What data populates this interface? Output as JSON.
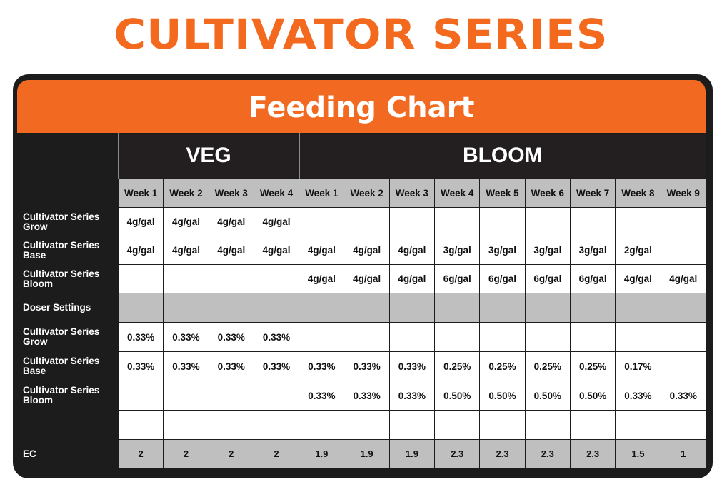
{
  "brand_title": "CULTIVATOR SERIES",
  "chart_title": "Feeding Chart",
  "colors": {
    "accent": "#f26a21",
    "dark": "#1d1c1c",
    "gray": "#bfbfbf"
  },
  "phases": [
    {
      "label": "VEG",
      "weeks": 4
    },
    {
      "label": "BLOOM",
      "weeks": 9
    }
  ],
  "weeks": [
    "Week 1",
    "Week 2",
    "Week 3",
    "Week 4",
    "Week 1",
    "Week 2",
    "Week 3",
    "Week 4",
    "Week 5",
    "Week 6",
    "Week 7",
    "Week 8",
    "Week 9"
  ],
  "rows": [
    {
      "label": "Cultivator Series Grow",
      "type": "cell",
      "values": [
        "4g/gal",
        "4g/gal",
        "4g/gal",
        "4g/gal",
        "",
        "",
        "",
        "",
        "",
        "",
        "",
        "",
        ""
      ]
    },
    {
      "label": "Cultivator Series Base",
      "type": "cell",
      "values": [
        "4g/gal",
        "4g/gal",
        "4g/gal",
        "4g/gal",
        "4g/gal",
        "4g/gal",
        "4g/gal",
        "3g/gal",
        "3g/gal",
        "3g/gal",
        "3g/gal",
        "2g/gal",
        ""
      ]
    },
    {
      "label": "Cultivator Series Bloom",
      "type": "cell",
      "values": [
        "",
        "",
        "",
        "",
        "4g/gal",
        "4g/gal",
        "4g/gal",
        "6g/gal",
        "6g/gal",
        "6g/gal",
        "6g/gal",
        "4g/gal",
        "4g/gal"
      ]
    },
    {
      "label": "Doser Settings",
      "type": "grey",
      "values": [
        "",
        "",
        "",
        "",
        "",
        "",
        "",
        "",
        "",
        "",
        "",
        "",
        ""
      ]
    },
    {
      "label": "Cultivator Series Grow",
      "type": "cell",
      "values": [
        "0.33%",
        "0.33%",
        "0.33%",
        "0.33%",
        "",
        "",
        "",
        "",
        "",
        "",
        "",
        "",
        ""
      ]
    },
    {
      "label": "Cultivator Series Base",
      "type": "cell",
      "values": [
        "0.33%",
        "0.33%",
        "0.33%",
        "0.33%",
        "0.33%",
        "0.33%",
        "0.33%",
        "0.25%",
        "0.25%",
        "0.25%",
        "0.25%",
        "0.17%",
        ""
      ]
    },
    {
      "label": "Cultivator Series Bloom",
      "type": "cell",
      "values": [
        "",
        "",
        "",
        "",
        "0.33%",
        "0.33%",
        "0.33%",
        "0.50%",
        "0.50%",
        "0.50%",
        "0.50%",
        "0.33%",
        "0.33%"
      ]
    },
    {
      "label": "",
      "type": "cell",
      "values": [
        "",
        "",
        "",
        "",
        "",
        "",
        "",
        "",
        "",
        "",
        "",
        "",
        ""
      ]
    },
    {
      "label": "EC",
      "type": "ec",
      "values": [
        "2",
        "2",
        "2",
        "2",
        "1.9",
        "1.9",
        "1.9",
        "2.3",
        "2.3",
        "2.3",
        "2.3",
        "1.5",
        "1"
      ]
    }
  ]
}
